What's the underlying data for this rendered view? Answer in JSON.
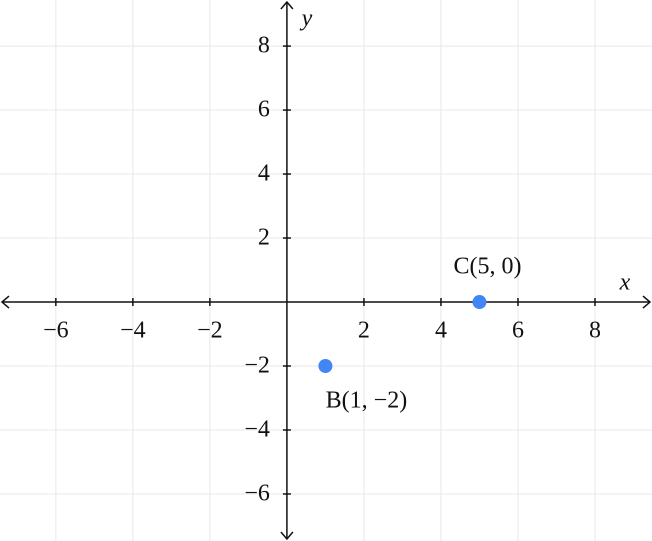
{
  "chart_data": {
    "type": "scatter",
    "x_label": "x",
    "y_label": "y",
    "x": [
      1,
      5
    ],
    "values": [
      -2,
      0
    ],
    "point_labels": [
      "B(1, −2)",
      "C(5, 0)"
    ],
    "color": "#4285f4",
    "xlim": [
      -7.45,
      9.48
    ],
    "ylim": [
      -7.47,
      9.44
    ],
    "xticks": [
      {
        "value": -6,
        "label": "−6"
      },
      {
        "value": -4,
        "label": "−4"
      },
      {
        "value": -2,
        "label": "−2"
      },
      2,
      4,
      6,
      8
    ],
    "yticks": [
      {
        "value": -6,
        "label": "−6"
      },
      {
        "value": -4,
        "label": "−4"
      },
      {
        "value": -2,
        "label": "−2"
      },
      2,
      4,
      6,
      8
    ],
    "grid": true
  }
}
